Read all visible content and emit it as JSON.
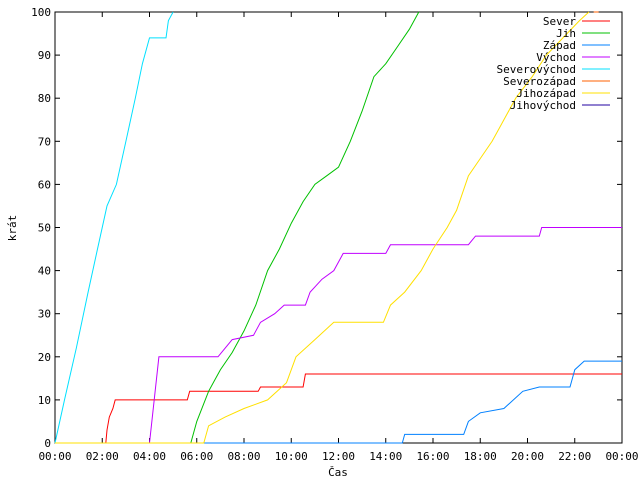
{
  "chart_data": {
    "type": "line",
    "xlabel": "Čas",
    "ylabel": "krát",
    "x_tick_labels": [
      "00:00",
      "02:00",
      "04:00",
      "06:00",
      "08:00",
      "10:00",
      "12:00",
      "14:00",
      "16:00",
      "18:00",
      "20:00",
      "22:00",
      "00:00"
    ],
    "x_ticks_hours": [
      0,
      2,
      4,
      6,
      8,
      10,
      12,
      14,
      16,
      18,
      20,
      22,
      24
    ],
    "y_ticks": [
      0,
      10,
      20,
      30,
      40,
      50,
      60,
      70,
      80,
      90,
      100
    ],
    "xlim_hours": [
      0,
      24
    ],
    "ylim": [
      0,
      100
    ],
    "grid": false,
    "legend_position": "top-right",
    "series": [
      {
        "name": "Sever",
        "color": "#ff0000",
        "points": [
          [
            0,
            0
          ],
          [
            2.15,
            0
          ],
          [
            2.2,
            3
          ],
          [
            2.3,
            6
          ],
          [
            2.45,
            8
          ],
          [
            2.55,
            10
          ],
          [
            5.6,
            10
          ],
          [
            5.7,
            12
          ],
          [
            8.6,
            12
          ],
          [
            8.7,
            13
          ],
          [
            10.5,
            13
          ],
          [
            10.6,
            16
          ],
          [
            24,
            16
          ]
        ]
      },
      {
        "name": "Jih",
        "color": "#00c000",
        "points": [
          [
            0,
            0
          ],
          [
            5.75,
            0
          ],
          [
            6.0,
            5
          ],
          [
            6.5,
            12
          ],
          [
            7.0,
            17
          ],
          [
            7.5,
            21
          ],
          [
            8.0,
            26
          ],
          [
            8.5,
            32
          ],
          [
            9.0,
            40
          ],
          [
            9.5,
            45
          ],
          [
            10.0,
            51
          ],
          [
            10.5,
            56
          ],
          [
            11.0,
            60
          ],
          [
            11.5,
            62
          ],
          [
            12.0,
            64
          ],
          [
            12.5,
            70
          ],
          [
            13.0,
            77
          ],
          [
            13.5,
            85
          ],
          [
            14.0,
            88
          ],
          [
            14.5,
            92
          ],
          [
            15.0,
            96
          ],
          [
            15.4,
            100
          ]
        ]
      },
      {
        "name": "Západ",
        "color": "#0080ff",
        "points": [
          [
            0,
            0
          ],
          [
            14.7,
            0
          ],
          [
            14.8,
            2
          ],
          [
            17.3,
            2
          ],
          [
            17.5,
            5
          ],
          [
            18.0,
            7
          ],
          [
            19.0,
            8
          ],
          [
            19.8,
            12
          ],
          [
            20.5,
            13
          ],
          [
            21.8,
            13
          ],
          [
            22.0,
            17
          ],
          [
            22.4,
            19
          ],
          [
            24,
            19
          ]
        ]
      },
      {
        "name": "Východ",
        "color": "#c000ff",
        "points": [
          [
            0,
            0
          ],
          [
            4.0,
            0
          ],
          [
            4.2,
            10
          ],
          [
            4.4,
            20
          ],
          [
            6.9,
            20
          ],
          [
            7.2,
            22
          ],
          [
            7.5,
            24
          ],
          [
            8.4,
            25
          ],
          [
            8.7,
            28
          ],
          [
            9.3,
            30
          ],
          [
            9.7,
            32
          ],
          [
            10.6,
            32
          ],
          [
            10.8,
            35
          ],
          [
            11.3,
            38
          ],
          [
            11.8,
            40
          ],
          [
            12.2,
            44
          ],
          [
            14.0,
            44
          ],
          [
            14.2,
            46
          ],
          [
            17.5,
            46
          ],
          [
            17.8,
            48
          ],
          [
            20.5,
            48
          ],
          [
            20.6,
            50
          ],
          [
            24,
            50
          ]
        ]
      },
      {
        "name": "Severovýchod",
        "color": "#00e0ff",
        "points": [
          [
            0,
            0
          ],
          [
            0.4,
            10
          ],
          [
            0.9,
            22
          ],
          [
            1.4,
            35
          ],
          [
            1.8,
            45
          ],
          [
            2.2,
            55
          ],
          [
            2.6,
            60
          ],
          [
            3.0,
            70
          ],
          [
            3.4,
            80
          ],
          [
            3.7,
            88
          ],
          [
            4.0,
            94
          ],
          [
            4.7,
            94
          ],
          [
            4.8,
            98
          ],
          [
            5.0,
            100
          ]
        ]
      },
      {
        "name": "Severozápad",
        "color": "#ff6000",
        "points": [
          [
            22.8,
            100
          ]
        ]
      },
      {
        "name": "Jihozápad",
        "color": "#ffe000",
        "points": [
          [
            0,
            0
          ],
          [
            6.3,
            0
          ],
          [
            6.5,
            4
          ],
          [
            7.2,
            6
          ],
          [
            8.0,
            8
          ],
          [
            9.0,
            10
          ],
          [
            9.8,
            14
          ],
          [
            10.2,
            20
          ],
          [
            11.0,
            24
          ],
          [
            11.8,
            28
          ],
          [
            13.9,
            28
          ],
          [
            14.2,
            32
          ],
          [
            14.8,
            35
          ],
          [
            15.5,
            40
          ],
          [
            16.0,
            45
          ],
          [
            16.6,
            50
          ],
          [
            17.0,
            54
          ],
          [
            17.5,
            62
          ],
          [
            18.0,
            66
          ],
          [
            18.5,
            70
          ],
          [
            19.0,
            75
          ],
          [
            19.5,
            80
          ],
          [
            20.2,
            85
          ],
          [
            20.8,
            90
          ],
          [
            21.5,
            94
          ],
          [
            22.2,
            98
          ],
          [
            22.6,
            100
          ]
        ]
      },
      {
        "name": "Jihovýchod",
        "color": "#2000a0",
        "points": []
      }
    ]
  }
}
